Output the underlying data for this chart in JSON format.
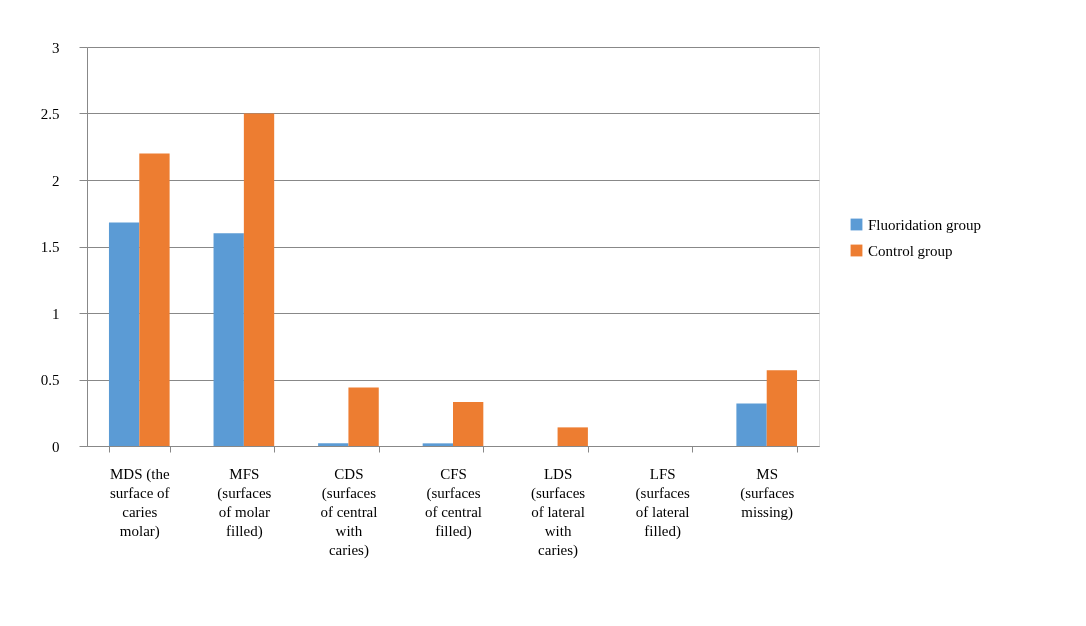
{
  "chart_data": {
    "type": "bar",
    "categories": [
      "MDS (the surface of caries molar)",
      "MFS (surfaces of molar filled)",
      "CDS (surfaces of central with caries)",
      "CFS (surfaces of central filled)",
      "LDS (surfaces of lateral with caries)",
      "LFS (surfaces of lateral filled)",
      "MS (surfaces missing)"
    ],
    "series": [
      {
        "name": "Fluoridation group",
        "color": "#5b9bd5",
        "values": [
          1.68,
          1.6,
          0.02,
          0.02,
          0,
          0,
          0.32
        ]
      },
      {
        "name": "Control group",
        "color": "#ed7d31",
        "values": [
          2.2,
          2.5,
          0.44,
          0.33,
          0.14,
          0,
          0.57
        ]
      }
    ],
    "ylim": [
      0,
      3
    ],
    "yticks": [
      0,
      0.5,
      1,
      1.5,
      2,
      2.5,
      3
    ],
    "grid": "y",
    "legend": "right"
  }
}
